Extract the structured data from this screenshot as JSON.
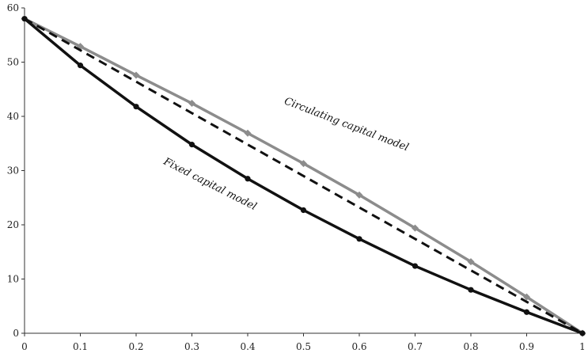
{
  "chart_data": {
    "type": "line",
    "title": "",
    "xlabel": "",
    "ylabel": "",
    "xlim": [
      0,
      1
    ],
    "ylim": [
      0,
      60
    ],
    "x_ticks": [
      "0",
      "0.1",
      "0.2",
      "0.3",
      "0.4",
      "0.5",
      "0.6",
      "0.7",
      "0.8",
      "0.9",
      "1"
    ],
    "y_ticks": [
      "0",
      "10",
      "20",
      "30",
      "40",
      "50",
      "60"
    ],
    "grid": false,
    "legend": "none",
    "x": [
      0,
      0.1,
      0.2,
      0.3,
      0.4,
      0.5,
      0.6,
      0.7,
      0.8,
      0.9,
      1
    ],
    "series": [
      {
        "values": [
          58,
          52.9,
          47.6,
          42.4,
          36.9,
          31.3,
          25.5,
          19.4,
          13.2,
          6.7,
          0
        ],
        "color": "#8c8c8c",
        "style": "solid",
        "marker": "diamond"
      },
      {
        "values": [
          58,
          52.2,
          46.4,
          40.6,
          34.8,
          29,
          23.2,
          17.4,
          11.6,
          5.8,
          0
        ],
        "color": "#111111",
        "style": "dashed",
        "marker": "none"
      },
      {
        "values": [
          58,
          49.4,
          41.8,
          34.8,
          28.5,
          22.7,
          17.4,
          12.4,
          8,
          3.9,
          0
        ],
        "color": "#111111",
        "style": "solid",
        "marker": "circle"
      }
    ],
    "annotations": [
      {
        "text": "Circulating capital model",
        "x": 0.575,
        "y": 38,
        "angle": 21
      },
      {
        "text": "Fixed capital model",
        "x": 0.33,
        "y": 27,
        "angle": 27
      }
    ]
  }
}
